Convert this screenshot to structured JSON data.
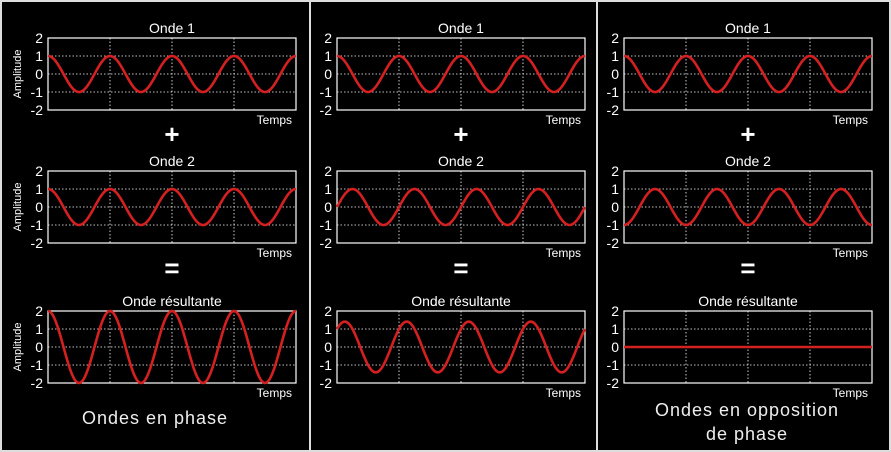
{
  "columns": [
    {
      "id": "in-phase",
      "caption": [
        "Ondes en phase"
      ],
      "plots": [
        {
          "title": "Onde 1",
          "ylabel": "Amplitude",
          "xlabel": "Temps",
          "yticks": [
            "2",
            "1",
            "0",
            "-1",
            "-2"
          ],
          "ylim": [
            -2,
            2
          ],
          "amplitude": 1,
          "phase_deg": 90,
          "cycles": 4
        },
        {
          "title": "Onde 2",
          "ylabel": "Amplitude",
          "xlabel": "Temps",
          "yticks": [
            "2",
            "1",
            "0",
            "-1",
            "-2"
          ],
          "ylim": [
            -2,
            2
          ],
          "amplitude": 1,
          "phase_deg": 90,
          "cycles": 4
        },
        {
          "title": "Onde résultante",
          "ylabel": "Amplitude",
          "xlabel": "Temps",
          "yticks": [
            "2",
            "1",
            "0",
            "-1",
            "-2"
          ],
          "ylim": [
            -2,
            2
          ],
          "amplitude": 2,
          "phase_deg": 90,
          "cycles": 4
        }
      ]
    },
    {
      "id": "phase-shift",
      "caption": [],
      "plots": [
        {
          "title": "Onde 1",
          "ylabel": "",
          "xlabel": "Temps",
          "yticks": [
            "2",
            "1",
            "0",
            "-1",
            "-2"
          ],
          "ylim": [
            -2,
            2
          ],
          "amplitude": 1,
          "phase_deg": 90,
          "cycles": 4
        },
        {
          "title": "Onde 2",
          "ylabel": "",
          "xlabel": "Temps",
          "yticks": [
            "2",
            "1",
            "0",
            "-1",
            "-2"
          ],
          "ylim": [
            -2,
            2
          ],
          "amplitude": 1,
          "phase_deg": 0,
          "cycles": 4
        },
        {
          "title": "Onde résultante",
          "ylabel": "",
          "xlabel": "Temps",
          "yticks": [
            "2",
            "1",
            "0",
            "-1",
            "-2"
          ],
          "ylim": [
            -2,
            2
          ],
          "amplitude": 1.41,
          "phase_deg": 45,
          "cycles": 4
        }
      ]
    },
    {
      "id": "opposition",
      "caption": [
        "Ondes en opposition",
        "de phase"
      ],
      "plots": [
        {
          "title": "Onde 1",
          "ylabel": "",
          "xlabel": "Temps",
          "yticks": [
            "2",
            "1",
            "0",
            "-1",
            "-2"
          ],
          "ylim": [
            -2,
            2
          ],
          "amplitude": 1,
          "phase_deg": 90,
          "cycles": 4
        },
        {
          "title": "Onde 2",
          "ylabel": "",
          "xlabel": "Temps",
          "yticks": [
            "2",
            "1",
            "0",
            "-1",
            "-2"
          ],
          "ylim": [
            -2,
            2
          ],
          "amplitude": 1,
          "phase_deg": -90,
          "cycles": 4
        },
        {
          "title": "Onde résultante",
          "ylabel": "",
          "xlabel": "Temps",
          "yticks": [
            "2",
            "1",
            "0",
            "-1",
            "-2"
          ],
          "ylim": [
            -2,
            2
          ],
          "amplitude": 0,
          "phase_deg": 0,
          "cycles": 4
        }
      ]
    }
  ],
  "operators": [
    "+",
    "="
  ],
  "colors": {
    "wave": "#d42020",
    "grid": "#ffffff",
    "background": "#000000",
    "frame": "#dddddd"
  }
}
